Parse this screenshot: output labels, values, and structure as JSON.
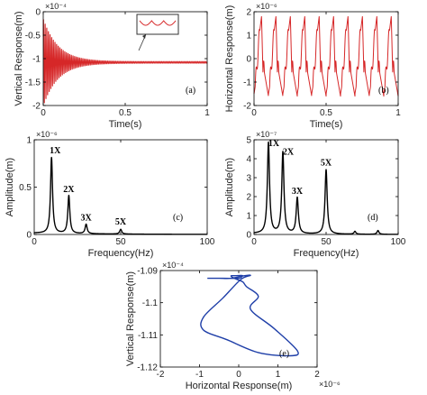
{
  "chart_data": [
    {
      "id": "a",
      "type": "line",
      "panel_label": "(a)",
      "xlabel": "Time(s)",
      "ylabel": "Vertical Response(m)",
      "exponent": "×10⁻⁴",
      "xlim": [
        0,
        1
      ],
      "ylim": [
        -2,
        0
      ],
      "xticks": [
        0,
        0.5,
        1
      ],
      "yticks": [
        -2,
        -1.5,
        -1,
        -0.5,
        0
      ],
      "ytick_labels": [
        "-2",
        "-1.5",
        "-1",
        "-0.5",
        "0"
      ],
      "series": [
        {
          "color": "#d62728",
          "signal": {
            "kind": "decaying_oscillation",
            "mean": -1.08,
            "initial_amplitude": 0.95,
            "decay_time": 0.09,
            "frequency_hz": 100,
            "final_ripple": 0.02
          }
        }
      ],
      "inset": {
        "description_color": "#d62728",
        "frame_color": "#333333"
      }
    },
    {
      "id": "b",
      "type": "line",
      "panel_label": "(b)",
      "xlabel": "Time(s)",
      "ylabel": "Horizontal Response(m)",
      "exponent": "×10⁻⁶",
      "xlim": [
        0,
        1
      ],
      "ylim": [
        -2,
        2
      ],
      "xticks": [
        0,
        0.5,
        1
      ],
      "yticks": [
        -2,
        -1,
        0,
        1,
        2
      ],
      "ytick_labels": [
        "-2",
        "-1",
        "0",
        "1",
        "2"
      ],
      "series": [
        {
          "color": "#d62728",
          "signal": {
            "kind": "periodic",
            "period_s": 0.1,
            "peak": 1.8,
            "trough": -1.6
          }
        }
      ]
    },
    {
      "id": "c",
      "type": "line",
      "panel_label": "(c)",
      "xlabel": "Frequency(Hz)",
      "ylabel": "Amplitude(m)",
      "exponent": "×10⁻⁶",
      "xlim": [
        0,
        100
      ],
      "ylim": [
        0,
        1
      ],
      "xticks": [
        0,
        50,
        100
      ],
      "yticks": [
        0,
        0.5,
        1
      ],
      "ytick_labels": [
        "0",
        "0.5",
        "1"
      ],
      "peaks": [
        {
          "label": "1X",
          "x": 10,
          "y": 0.8
        },
        {
          "label": "2X",
          "x": 20,
          "y": 0.4
        },
        {
          "label": "3X",
          "x": 30,
          "y": 0.1
        },
        {
          "label": "5X",
          "x": 50,
          "y": 0.05
        }
      ],
      "series": [
        {
          "color": "#000000"
        }
      ]
    },
    {
      "id": "d",
      "type": "line",
      "panel_label": "(d)",
      "xlabel": "Frequency(Hz)",
      "ylabel": "Amplitude(m)",
      "exponent": "×10⁻⁷",
      "xlim": [
        0,
        100
      ],
      "ylim": [
        0,
        5
      ],
      "xticks": [
        0,
        50,
        100
      ],
      "yticks": [
        0,
        1,
        2,
        3,
        4,
        5
      ],
      "ytick_labels": [
        "0",
        "1",
        "2",
        "3",
        "4",
        "5"
      ],
      "peaks": [
        {
          "label": "1X",
          "x": 10,
          "y": 4.8
        },
        {
          "label": "2X",
          "x": 20,
          "y": 4.3
        },
        {
          "label": "3X",
          "x": 30,
          "y": 1.9
        },
        {
          "label": "5X",
          "x": 50,
          "y": 3.4
        }
      ],
      "series": [
        {
          "color": "#000000"
        }
      ]
    },
    {
      "id": "e",
      "type": "line",
      "panel_label": "(e)",
      "xlabel": "Horizontal Response(m)",
      "ylabel": "Vertical Response(m)",
      "exponent": "×10⁻⁴",
      "xexponent": "×10⁻⁶",
      "xlim": [
        -2,
        2
      ],
      "ylim": [
        -1.12,
        -1.09
      ],
      "xticks": [
        -2,
        -1,
        0,
        1,
        2
      ],
      "yticks": [
        -1.12,
        -1.11,
        -1.1,
        -1.09
      ],
      "ytick_labels": [
        "-1.12",
        "-1.11",
        "-1.1",
        "-1.09"
      ],
      "series": [
        {
          "color": "#1f3fa8",
          "x": [
            -0.5,
            0.0,
            0.1,
            0.3,
            0.05,
            -0.4,
            -0.9,
            -0.9,
            -0.3,
            0.5,
            1.3,
            1.5,
            0.9,
            0.3,
            0.5,
            0.2,
            0.1,
            -0.1,
            -0.2,
            -0.1,
            0.1,
            -0.2,
            -0.5,
            -0.8
          ],
          "y": [
            -1.0924,
            -1.0924,
            -1.0917,
            -1.0915,
            -1.0928,
            -1.0985,
            -1.1045,
            -1.1085,
            -1.1115,
            -1.1155,
            -1.1165,
            -1.115,
            -1.108,
            -1.102,
            -1.098,
            -1.095,
            -1.0935,
            -1.0925,
            -1.0917,
            -1.0916,
            -1.0916,
            -1.0924,
            -1.0924,
            -1.0924
          ]
        }
      ]
    }
  ]
}
